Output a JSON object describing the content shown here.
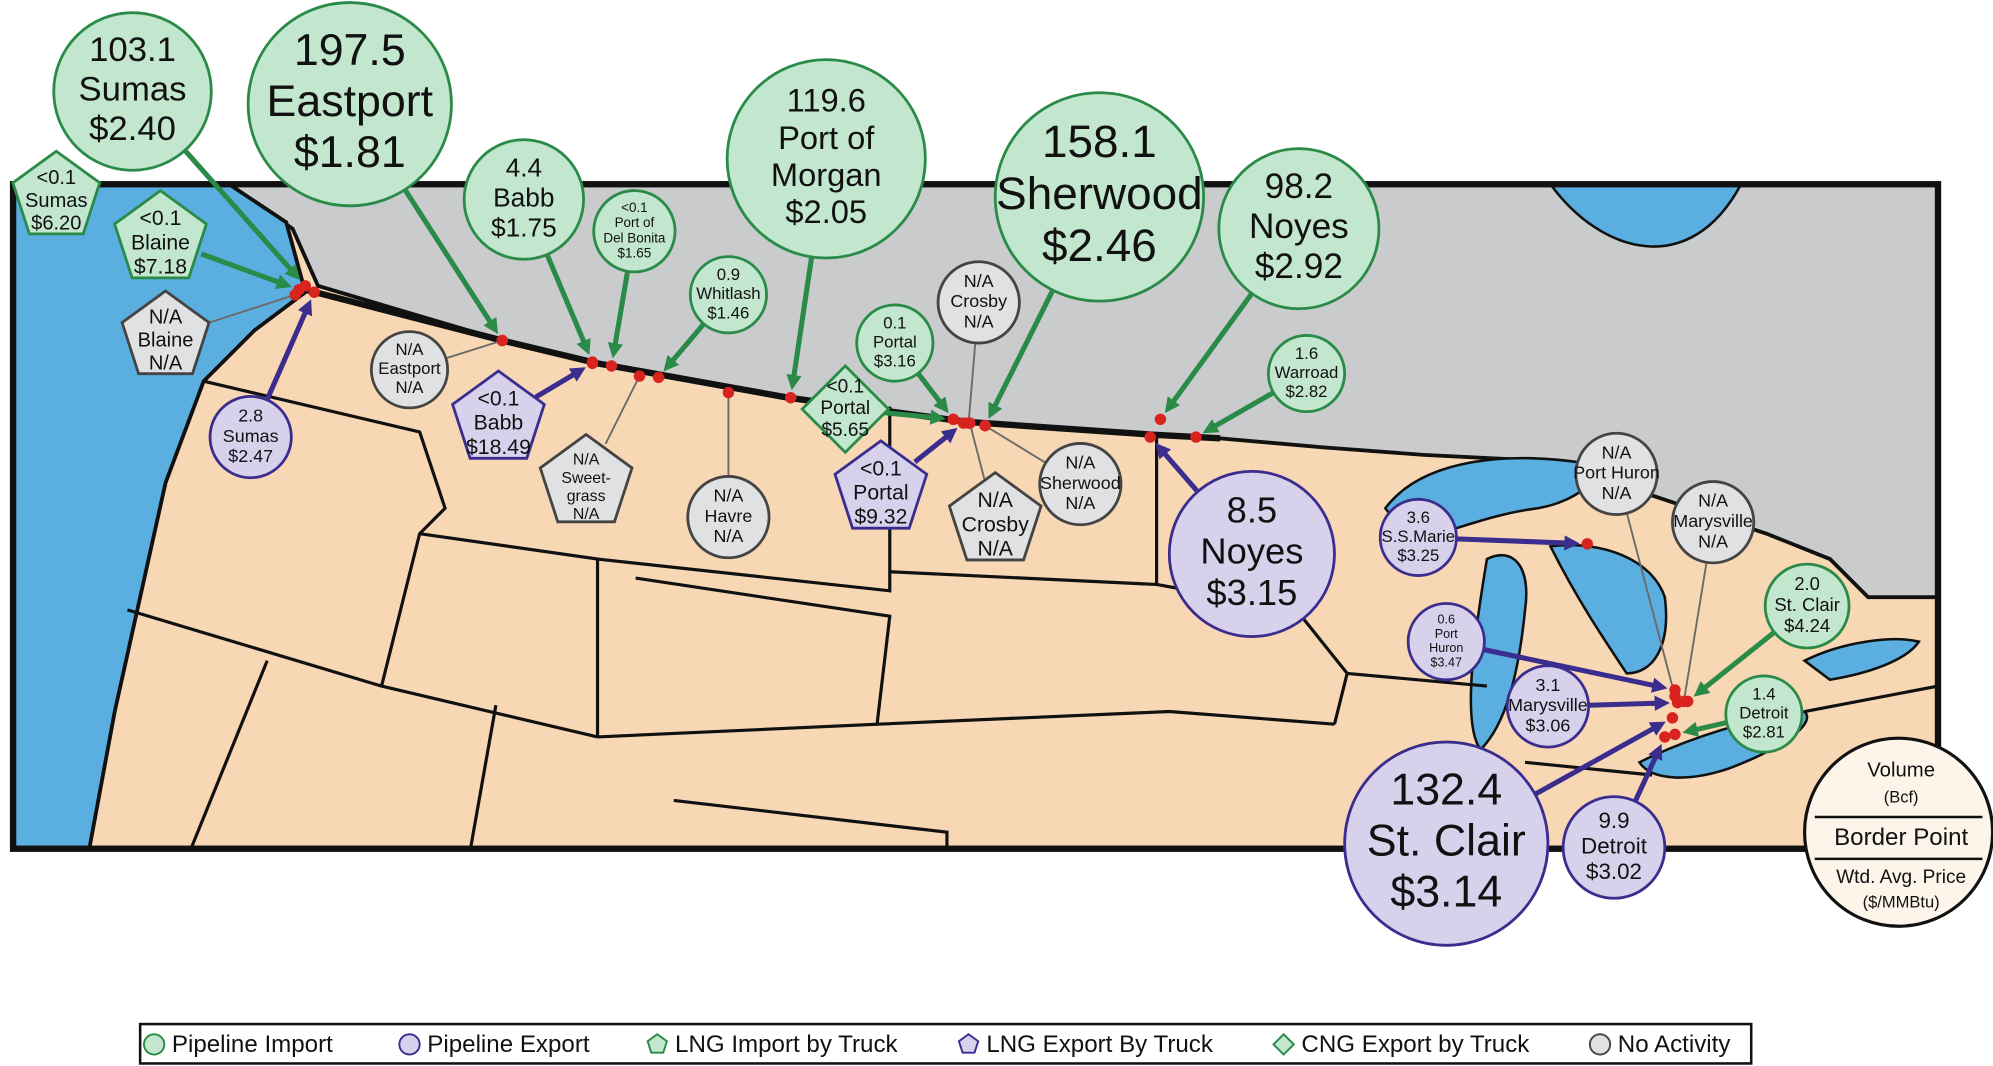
{
  "groups": [
    {
      "label": "Pipeline Import",
      "shape": "circle",
      "fill": "#c3e6cf",
      "stroke": "#2a8a47",
      "points": [
        {
          "volume": "103.1",
          "name": "Sumas",
          "price": "$2.40"
        },
        {
          "volume": "197.5",
          "name": "Eastport",
          "price": "$1.81"
        },
        {
          "volume": "4.4",
          "name": "Babb",
          "price": "$1.75"
        },
        {
          "volume": "<0.1",
          "name": [
            "Port of",
            "Del Bonita"
          ],
          "price": "$1.65"
        },
        {
          "volume": "0.9",
          "name": "Whitlash",
          "price": "$1.46"
        },
        {
          "volume": "119.6",
          "name": [
            "Port of",
            "Morgan"
          ],
          "price": "$2.05"
        },
        {
          "volume": "0.1",
          "name": "Portal",
          "price": "$3.16"
        },
        {
          "volume": "158.1",
          "name": "Sherwood",
          "price": "$2.46"
        },
        {
          "volume": "98.2",
          "name": "Noyes",
          "price": "$2.92"
        },
        {
          "volume": "1.6",
          "name": "Warroad",
          "price": "$2.82"
        },
        {
          "volume": "2.0",
          "name": "St. Clair",
          "price": "$4.24"
        },
        {
          "volume": "1.4",
          "name": "Detroit",
          "price": "$2.81"
        }
      ]
    },
    {
      "label": "Pipeline Export",
      "shape": "circle",
      "fill": "#d7d1ec",
      "stroke": "#3a2d8e",
      "points": [
        {
          "volume": "2.8",
          "name": "Sumas",
          "price": "$2.47"
        },
        {
          "volume": "8.5",
          "name": "Noyes",
          "price": "$3.15"
        },
        {
          "volume": "3.6",
          "name": "S.S.Marie",
          "price": "$3.25"
        },
        {
          "volume": "0.6",
          "name": [
            "Port",
            "Huron"
          ],
          "price": "$3.47"
        },
        {
          "volume": "3.1",
          "name": "Marysville",
          "price": "$3.06"
        },
        {
          "volume": "132.4",
          "name": "St. Clair",
          "price": "$3.14"
        },
        {
          "volume": "9.9",
          "name": "Detroit",
          "price": "$3.02"
        }
      ]
    },
    {
      "label": "LNG Import by Truck",
      "shape": "pentagon",
      "fill": "#c3e6cf",
      "stroke": "#2a8a47",
      "points": [
        {
          "volume": "<0.1",
          "name": "Sumas",
          "price": "$6.20"
        },
        {
          "volume": "<0.1",
          "name": "Blaine",
          "price": "$7.18"
        }
      ]
    },
    {
      "label": "LNG Export By Truck",
      "shape": "pentagon",
      "fill": "#d7d1ec",
      "stroke": "#3a2d8e",
      "points": [
        {
          "volume": "<0.1",
          "name": "Babb",
          "price": "$18.49"
        },
        {
          "volume": "<0.1",
          "name": "Portal",
          "price": "$9.32"
        }
      ]
    },
    {
      "label": "CNG Export by Truck",
      "shape": "diamond",
      "fill": "#c3e6cf",
      "stroke": "#2a8a47",
      "points": [
        {
          "volume": "<0.1",
          "name": "Portal",
          "price": "$5.65"
        }
      ]
    },
    {
      "label": "No Activity",
      "shape": "circle",
      "fill": "#dfe1e3",
      "stroke": "#444444",
      "points": [
        {
          "volume": "N/A",
          "name": "Blaine",
          "price": "N/A",
          "shape": "pentagon"
        },
        {
          "volume": "N/A",
          "name": "Eastport",
          "price": "N/A"
        },
        {
          "volume": "N/A",
          "name": [
            "Sweet-",
            "grass"
          ],
          "price": "N/A",
          "shape": "pentagon"
        },
        {
          "volume": "N/A",
          "name": "Havre",
          "price": "N/A"
        },
        {
          "volume": "N/A",
          "name": "Crosby",
          "price": "N/A"
        },
        {
          "volume": "N/A",
          "name": "Crosby",
          "price": "N/A",
          "shape": "pentagon"
        },
        {
          "volume": "N/A",
          "name": "Sherwood",
          "price": "N/A"
        },
        {
          "volume": "N/A",
          "name": [
            "Port Huron"
          ],
          "price": "N/A"
        },
        {
          "volume": "N/A",
          "name": "Marysville",
          "price": "N/A"
        }
      ]
    }
  ],
  "key": {
    "volume": "Volume",
    "volume_unit": "(Bcf)",
    "point": "Border Point",
    "price": "Wtd. Avg. Price",
    "price_unit": "($/MMBtu)"
  }
}
